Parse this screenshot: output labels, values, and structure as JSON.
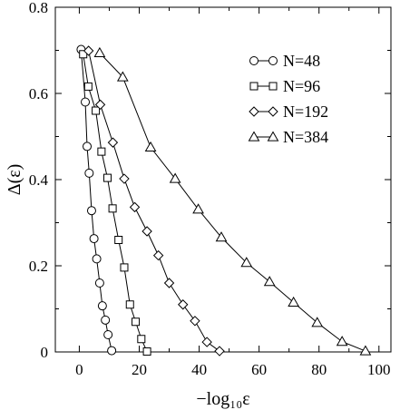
{
  "chart_data": {
    "type": "line",
    "xlabel": "−log₁₀ε",
    "ylabel": "Δ(ε)",
    "xlim": [
      -8,
      104
    ],
    "ylim": [
      0,
      0.8
    ],
    "x_ticks": [
      0,
      20,
      40,
      60,
      80,
      100
    ],
    "y_ticks": [
      0,
      0.2,
      0.4,
      0.6,
      0.8
    ],
    "x_tick_labels": [
      "0",
      "20",
      "40",
      "60",
      "80",
      "100"
    ],
    "y_tick_labels": [
      "0",
      "0.2",
      "0.4",
      "0.6",
      "0.8"
    ],
    "legend_position": "top-right",
    "grid": false,
    "series": [
      {
        "name": "N=48",
        "marker": "circle",
        "x": [
          0.6,
          2.0,
          2.6,
          3.3,
          4.1,
          4.9,
          5.8,
          6.8,
          7.7,
          8.7,
          9.6,
          10.8
        ],
        "y": [
          0.702,
          0.58,
          0.477,
          0.415,
          0.328,
          0.263,
          0.216,
          0.16,
          0.107,
          0.074,
          0.04,
          0.003
        ]
      },
      {
        "name": "N=96",
        "marker": "square",
        "x": [
          1.3,
          3.0,
          5.5,
          7.4,
          9.4,
          11.1,
          13.1,
          15.0,
          16.9,
          18.8,
          20.7,
          22.6
        ],
        "y": [
          0.691,
          0.616,
          0.56,
          0.465,
          0.404,
          0.333,
          0.26,
          0.196,
          0.11,
          0.07,
          0.03,
          0.001
        ]
      },
      {
        "name": "N=192",
        "marker": "diamond",
        "x": [
          3.1,
          7.0,
          11.2,
          15.0,
          18.5,
          22.6,
          26.4,
          30.0,
          34.6,
          38.6,
          42.6,
          46.8
        ],
        "y": [
          0.699,
          0.574,
          0.486,
          0.402,
          0.336,
          0.28,
          0.224,
          0.16,
          0.11,
          0.072,
          0.023,
          0.002
        ]
      },
      {
        "name": "N=384",
        "marker": "triangle",
        "x": [
          6.8,
          14.5,
          23.8,
          32.0,
          39.7,
          47.4,
          55.8,
          63.5,
          71.5,
          79.4,
          87.7,
          95.5
        ],
        "y": [
          0.694,
          0.638,
          0.475,
          0.402,
          0.331,
          0.266,
          0.207,
          0.163,
          0.115,
          0.068,
          0.024,
          0.002
        ]
      }
    ]
  }
}
